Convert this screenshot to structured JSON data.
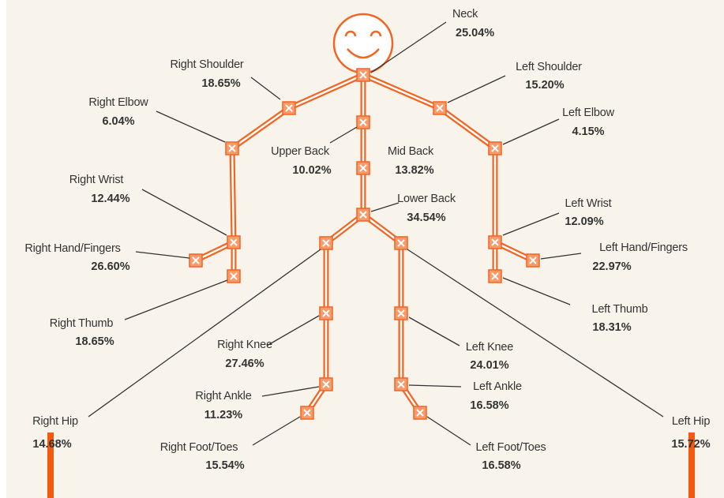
{
  "nodes": [
    {
      "label": "Neck",
      "value": "25.04%"
    },
    {
      "label": "Right Shoulder",
      "value": "18.65%"
    },
    {
      "label": "Left Shoulder",
      "value": "15.20%"
    },
    {
      "label": "Right Elbow",
      "value": "6.04%"
    },
    {
      "label": "Left Elbow",
      "value": "4.15%"
    },
    {
      "label": "Upper Back",
      "value": "10.02%"
    },
    {
      "label": "Mid Back",
      "value": "13.82%"
    },
    {
      "label": "Right Wrist",
      "value": "12.44%"
    },
    {
      "label": "Lower Back",
      "value": "34.54%"
    },
    {
      "label": "Left Wrist",
      "value": "12.09%"
    },
    {
      "label": "Right Hand/Fingers",
      "value": "26.60%"
    },
    {
      "label": "Left Hand/Fingers",
      "value": "22.97%"
    },
    {
      "label": "Left Thumb",
      "value": "18.31%"
    },
    {
      "label": "Right Thumb",
      "value": "18.65%"
    },
    {
      "label": "Right Knee",
      "value": "27.46%"
    },
    {
      "label": "Left Knee",
      "value": "24.01%"
    },
    {
      "label": "Right Ankle",
      "value": "11.23%"
    },
    {
      "label": "Left Ankle",
      "value": "16.58%"
    },
    {
      "label": "Right Hip",
      "value": "14.68%"
    },
    {
      "label": "Left Hip",
      "value": "15.72%"
    },
    {
      "label": "Right Foot/Toes",
      "value": "15.54%"
    },
    {
      "label": "Left Foot/Toes",
      "value": "16.58%"
    }
  ]
}
